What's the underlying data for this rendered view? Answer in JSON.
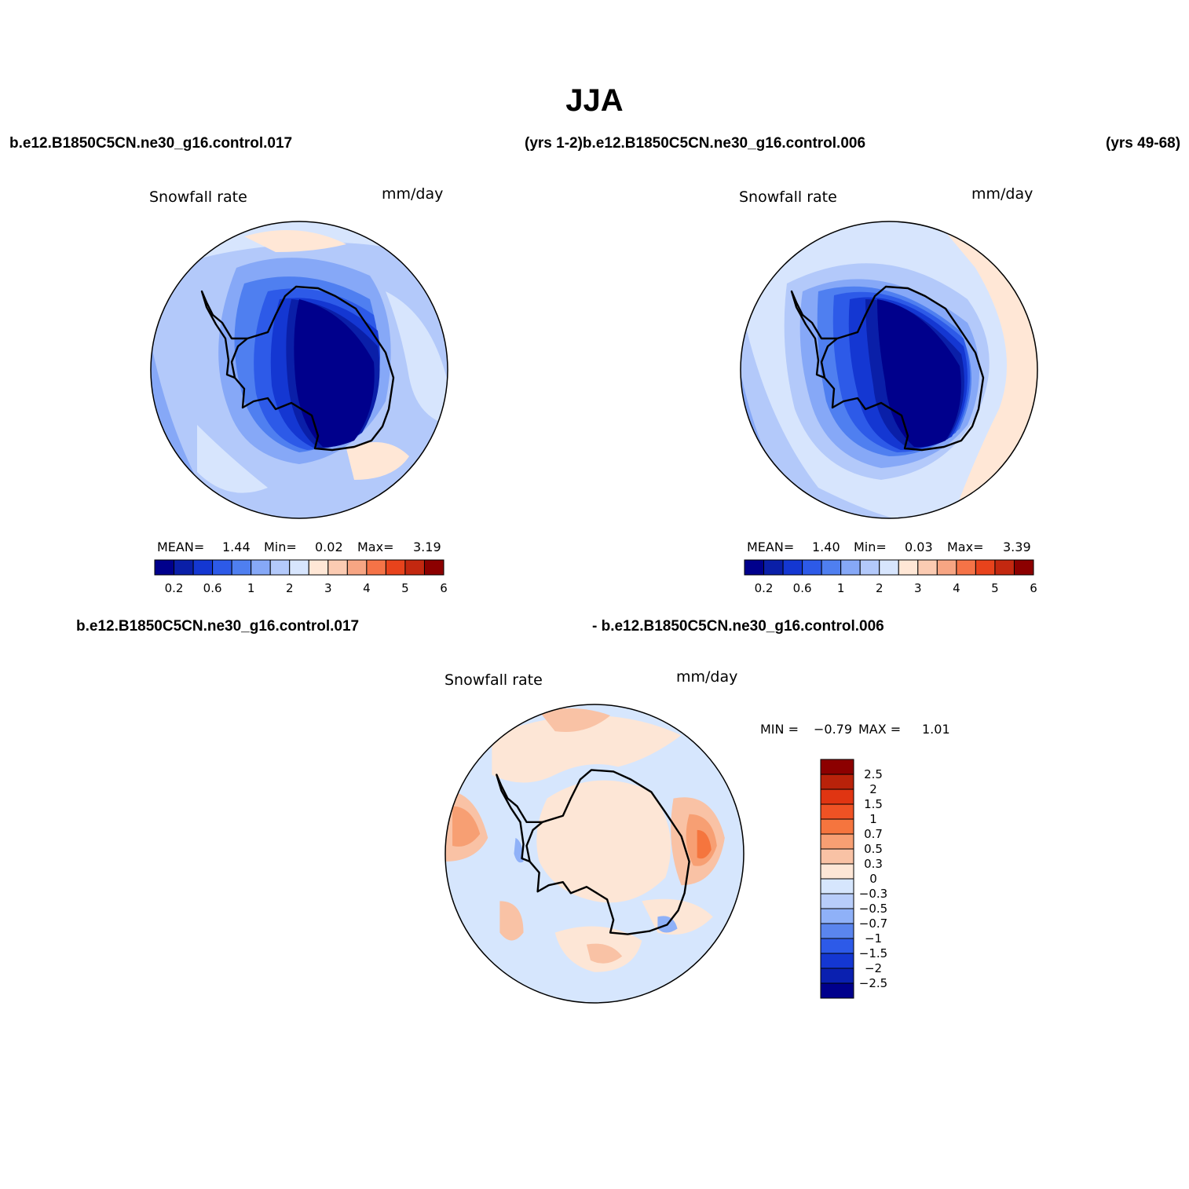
{
  "title": "JJA",
  "header": {
    "case_a": "b.e12.B1850C5CN.ne30_g16.control.017",
    "years_a_case_b": "(yrs 1-2)b.e12.B1850C5CN.ne30_g16.control.006",
    "years_b": "(yrs 49-68)"
  },
  "diff_header": {
    "case_a": "b.e12.B1850C5CN.ne30_g16.control.017",
    "minus_case_b": "- b.e12.B1850C5CN.ne30_g16.control.006"
  },
  "panels": {
    "left": {
      "variable": "Snowfall rate",
      "units": "mm/day",
      "stats": {
        "mean_label": "MEAN=",
        "mean": "1.44",
        "min_label": "Min=",
        "min": "0.02",
        "max_label": "Max=",
        "max": "3.19"
      }
    },
    "right": {
      "variable": "Snowfall rate",
      "units": "mm/day",
      "stats": {
        "mean_label": "MEAN=",
        "mean": "1.40",
        "min_label": "Min=",
        "min": "0.03",
        "max_label": "Max=",
        "max": "3.39"
      }
    },
    "diff": {
      "variable": "Snowfall rate",
      "units": "mm/day",
      "min_label": "MIN =",
      "min": "−0.79",
      "max_label": "MAX =",
      "max": "1.01"
    }
  },
  "colorbar_abs": {
    "colors": [
      "#00008c",
      "#0a1fa8",
      "#1437d2",
      "#2d5ae8",
      "#4f7ff0",
      "#86a8f7",
      "#b3c9fa",
      "#d7e5fd",
      "#ffe7d6",
      "#fbcbb2",
      "#f7a583",
      "#f57347",
      "#e8431c",
      "#c32810",
      "#8c0000"
    ],
    "tick_labels": [
      "0.2",
      "0.6",
      "1",
      "2",
      "3",
      "4",
      "5",
      "6"
    ]
  },
  "colorbar_diff": {
    "colors": [
      "#8c0000",
      "#b9220a",
      "#e03512",
      "#ef5224",
      "#f5753e",
      "#f79f73",
      "#f9c2a5",
      "#fde6d6",
      "#d6e6fd",
      "#b8cdfa",
      "#8fb1f8",
      "#5a85ee",
      "#2d5ae8",
      "#1437d2",
      "#0a20b0",
      "#00008c"
    ],
    "tick_labels": [
      "2.5",
      "2",
      "1.5",
      "1",
      "0.7",
      "0.5",
      "0.3",
      "0",
      "−0.3",
      "−0.5",
      "−0.7",
      "−1",
      "−1.5",
      "−2",
      "−2.5"
    ]
  }
}
